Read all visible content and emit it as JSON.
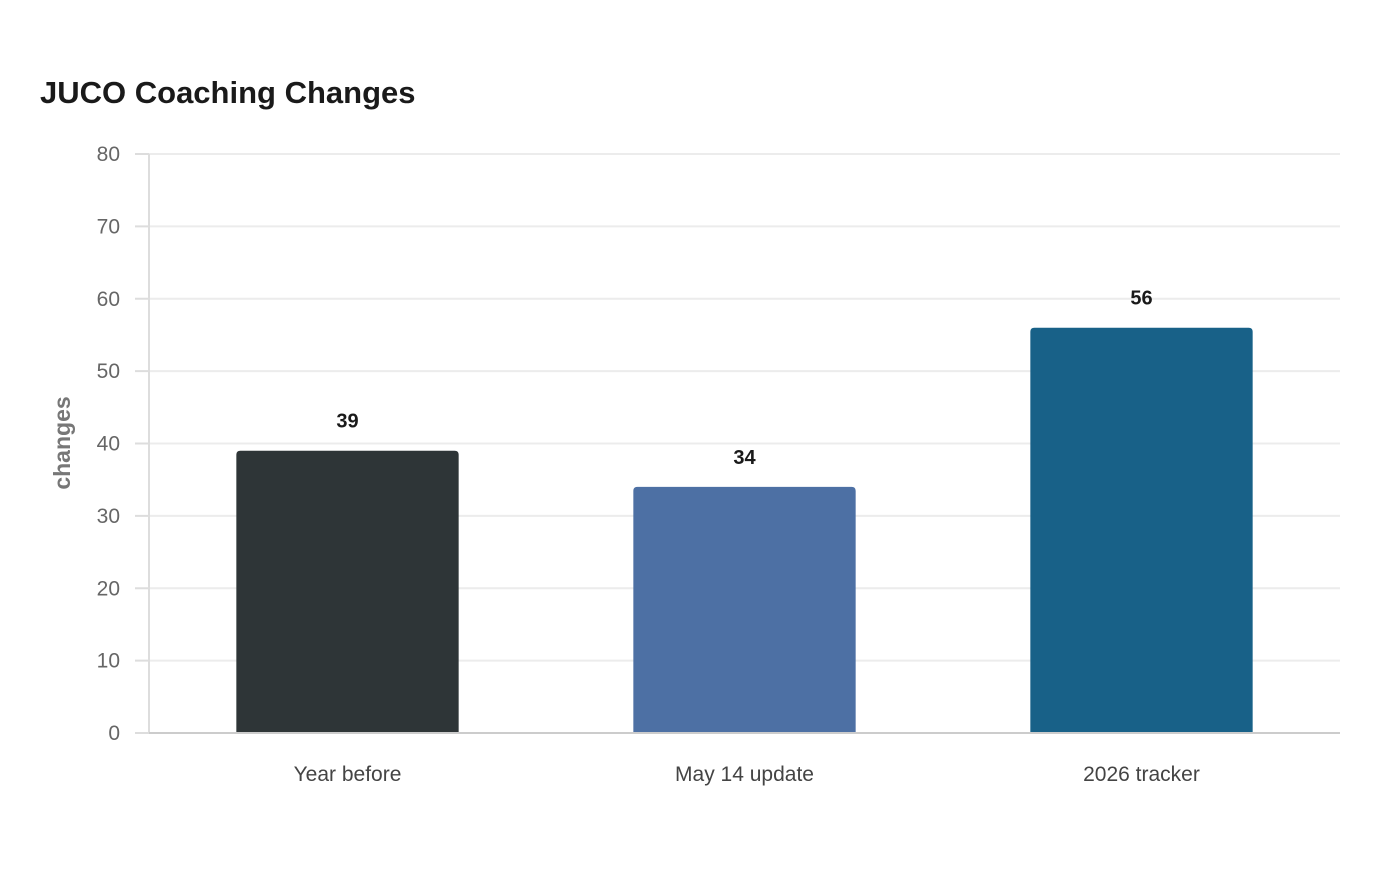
{
  "chart_data": {
    "type": "bar",
    "title": "JUCO Coaching Changes",
    "xlabel": "",
    "ylabel": "changes",
    "categories": [
      "Year before",
      "May 14 update",
      "2026 tracker"
    ],
    "values": [
      39,
      34,
      56
    ],
    "colors": [
      "#2e3537",
      "#4d70a4",
      "#186188"
    ],
    "ylim": [
      0,
      80
    ],
    "yticks": [
      0,
      10,
      20,
      30,
      40,
      50,
      60,
      70,
      80
    ],
    "grid": true,
    "legend": "none"
  }
}
